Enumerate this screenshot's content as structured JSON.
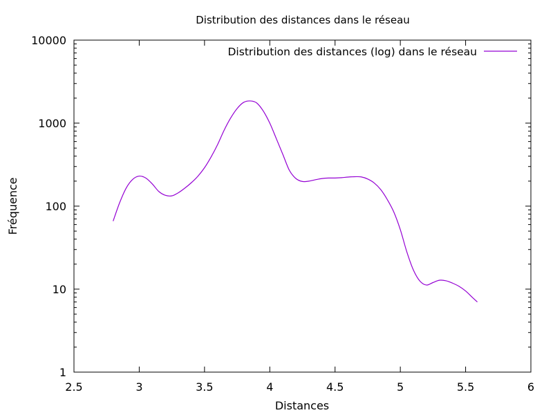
{
  "chart_data": {
    "type": "line",
    "title": "Distribution des distances dans le réseau",
    "xlabel": "Distances",
    "ylabel": "Fréquence",
    "xlim": [
      2.5,
      6
    ],
    "ylim": [
      1,
      10000
    ],
    "yscale": "log",
    "grid": false,
    "legend_position": "top-right",
    "x_ticks": [
      2.5,
      3,
      3.5,
      4,
      4.5,
      5,
      5.5,
      6
    ],
    "x_tick_labels": [
      "2.5",
      "3",
      "3.5",
      "4",
      "4.5",
      "5",
      "5.5",
      "6"
    ],
    "y_ticks": [
      1,
      10,
      100,
      1000,
      10000
    ],
    "y_tick_labels": [
      "1",
      "10",
      "100",
      "1000",
      "10000"
    ],
    "series": [
      {
        "name": "Distribution des distances (log) dans le réseau",
        "color": "#9400d3",
        "x": [
          2.8,
          2.85,
          2.9,
          2.95,
          3.0,
          3.05,
          3.1,
          3.15,
          3.2,
          3.25,
          3.3,
          3.35,
          3.4,
          3.45,
          3.5,
          3.55,
          3.6,
          3.65,
          3.7,
          3.75,
          3.8,
          3.85,
          3.9,
          3.95,
          4.0,
          4.05,
          4.1,
          4.15,
          4.2,
          4.25,
          4.3,
          4.35,
          4.4,
          4.45,
          4.5,
          4.55,
          4.6,
          4.65,
          4.7,
          4.75,
          4.8,
          4.85,
          4.9,
          4.95,
          5.0,
          5.05,
          5.1,
          5.15,
          5.2,
          5.25,
          5.3,
          5.35,
          5.4,
          5.45,
          5.5,
          5.55,
          5.59
        ],
        "y": [
          66,
          110,
          165,
          210,
          230,
          218,
          185,
          150,
          135,
          133,
          145,
          165,
          192,
          230,
          290,
          390,
          550,
          820,
          1150,
          1500,
          1780,
          1850,
          1750,
          1400,
          1000,
          650,
          420,
          270,
          215,
          198,
          200,
          208,
          215,
          218,
          218,
          220,
          224,
          226,
          225,
          212,
          190,
          158,
          120,
          85,
          52,
          28,
          17,
          12.5,
          11.2,
          12,
          12.8,
          12.6,
          11.8,
          10.8,
          9.5,
          8.0,
          7.0
        ]
      }
    ]
  }
}
